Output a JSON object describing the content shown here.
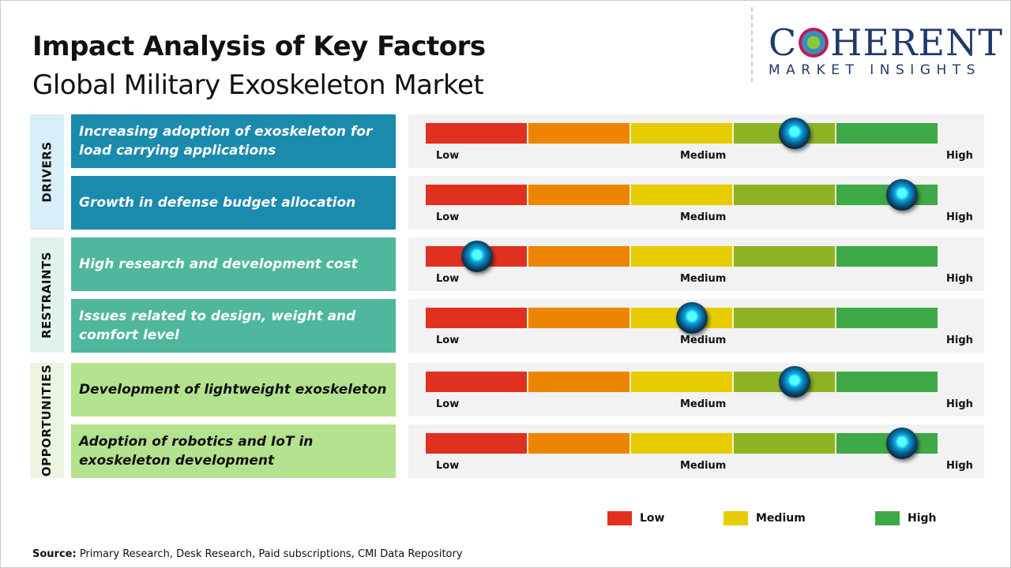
{
  "title": "Impact Analysis of Key Factors",
  "subtitle": "Global Military Exoskeleton Market",
  "logo": {
    "line1": "COHERENT",
    "line2": "MARKET INSIGHTS"
  },
  "chart_data": {
    "type": "table",
    "title": "Impact Analysis of Key Factors",
    "subtitle": "Global Military Exoskeleton Market",
    "scale_labels": [
      "Low",
      "Medium",
      "High"
    ],
    "segment_colors": [
      "#e03020",
      "#ee8500",
      "#e6cc00",
      "#8db325",
      "#3fa847"
    ],
    "categories": [
      {
        "name": "DRIVERS",
        "label_bg": "#d8eef8",
        "box_color": "#1a8aad",
        "text_color": "#ffffff",
        "factors": [
          {
            "text": "Increasing adoption of exoskeleton for load carrying applications",
            "impact_pct": 72
          },
          {
            "text": "Growth in defense budget allocation",
            "impact_pct": 93
          }
        ]
      },
      {
        "name": "RESTRAINTS",
        "label_bg": "#e0f2ee",
        "box_color": "#4fb79b",
        "text_color": "#ffffff",
        "factors": [
          {
            "text": "High research and development cost",
            "impact_pct": 10
          },
          {
            "text": "Issues related to design, weight and comfort level",
            "impact_pct": 52
          }
        ]
      },
      {
        "name": "OPPORTUNITIES",
        "label_bg": "#eaf5e2",
        "box_color": "#b5e28e",
        "text_color": "#111111",
        "factors": [
          {
            "text": "Development of lightweight exoskeleton",
            "impact_pct": 72
          },
          {
            "text": "Adoption of robotics and IoT in exoskeleton development",
            "impact_pct": 93
          }
        ]
      }
    ],
    "legend": [
      {
        "label": "Low",
        "color": "#e03020"
      },
      {
        "label": "Medium",
        "color": "#e6cc00"
      },
      {
        "label": "High",
        "color": "#3fa847"
      }
    ]
  },
  "source": {
    "label": "Source:",
    "text": " Primary Research, Desk Research, Paid subscriptions, CMI Data Repository"
  }
}
